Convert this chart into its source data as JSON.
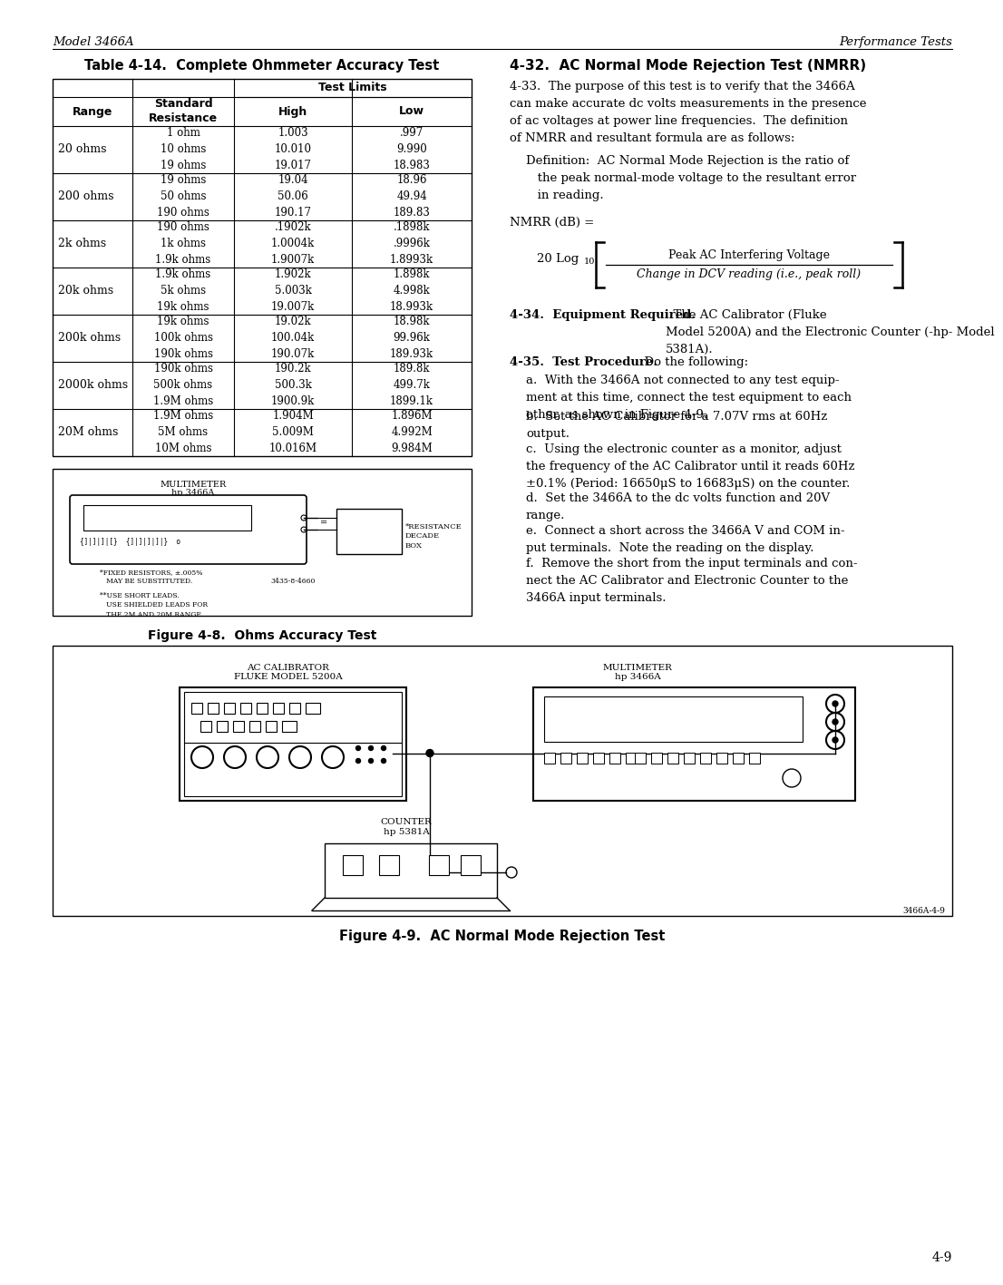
{
  "page_header_left": "Model 3466A",
  "page_header_right": "Performance Tests",
  "page_number": "4-9",
  "table_title": "Table 4-14.  Complete Ohmmeter Accuracy Test",
  "table_subheader": "Test Limits",
  "table_col_headers": [
    "Range",
    "Standard\nResistance",
    "High",
    "Low"
  ],
  "table_data": [
    [
      "20 ohms",
      "1 ohm\n10 ohms\n19 ohms",
      "1.003\n10.010\n19.017",
      ".997\n9.990\n18.983"
    ],
    [
      "200 ohms",
      "19 ohms\n50 ohms\n190 ohms",
      "19.04\n50.06\n190.17",
      "18.96\n49.94\n189.83"
    ],
    [
      "2k ohms",
      "190 ohms\n1k ohms\n1.9k ohms",
      ".1902k\n1.0004k\n1.9007k",
      ".1898k\n.9996k\n1.8993k"
    ],
    [
      "20k ohms",
      "1.9k ohms\n5k ohms\n19k ohms",
      "1.902k\n5.003k\n19.007k",
      "1.898k\n4.998k\n18.993k"
    ],
    [
      "200k ohms",
      "19k ohms\n100k ohms\n190k ohms",
      "19.02k\n100.04k\n190.07k",
      "18.98k\n99.96k\n189.93k"
    ],
    [
      "2000k ohms",
      "190k ohms\n500k ohms\n1.9M ohms",
      "190.2k\n500.3k\n1900.9k",
      "189.8k\n499.7k\n1899.1k"
    ],
    [
      "20M ohms",
      "1.9M ohms\n5M ohms\n10M ohms",
      "1.904M\n5.009M\n10.016M",
      "1.896M\n4.992M\n9.984M"
    ]
  ],
  "fig48_caption": "Figure 4-8.  Ohms Accuracy Test",
  "fig49_caption": "Figure 4-9.  AC Normal Mode Rejection Test",
  "fig49_part_number": "3466A-4-9",
  "fig48_part_number": "3435-8-4660",
  "section_432_title": "4-32.  AC Normal Mode Rejection Test (NMRR)",
  "para_433": "4-33.  The purpose of this test is to verify that the 3466A\ncan make accurate dc volts measurements in the presence\nof ac voltages at power line frequencies.  The definition\nof NMRR and resultant formula are as follows:",
  "definition": "Definition:  AC Normal Mode Rejection is the ratio of\n   the peak normal-mode voltage to the resultant error\n   in reading.",
  "nmrr_eq": "NMRR (dB) =",
  "formula_log": "20 Log",
  "formula_sub": "10",
  "formula_num": "Peak AC Interfering Voltage",
  "formula_den": "Change in DCV reading (i.e., peak roll)",
  "para_434_bold": "4-34.  Equipment Required.",
  "para_434_rest": "  The AC Calibrator (Fluke\nModel 5200A) and the Electronic Counter (-hp- Model\n5381A).",
  "para_435_bold": "4-35.  Test Procedure.",
  "para_435_rest": "  Do the following:",
  "para_a": "a.  With the 3466A not connected to any test equip-\nment at this time, connect the test equipment to each\nother, as shown in Figure 4-9.",
  "para_b": "b.  Set the AC Calibrator for a 7.07V rms at 60Hz\noutput.",
  "para_c": "c.  Using the electronic counter as a monitor, adjust\nthe frequency of the AC Calibrator until it reads 60Hz\n±0.1% (Period: 16650μS to 16683μS) on the counter.",
  "para_d": "d.  Set the 3466A to the dc volts function and 20V\nrange.",
  "para_e": "e.  Connect a short across the 3466A V and COM in-\nput terminals.  Note the reading on the display.",
  "para_f": "f.  Remove the short from the input terminals and con-\nnect the AC Calibrator and Electronic Counter to the\n3466A input terminals.",
  "bg": "#ffffff"
}
